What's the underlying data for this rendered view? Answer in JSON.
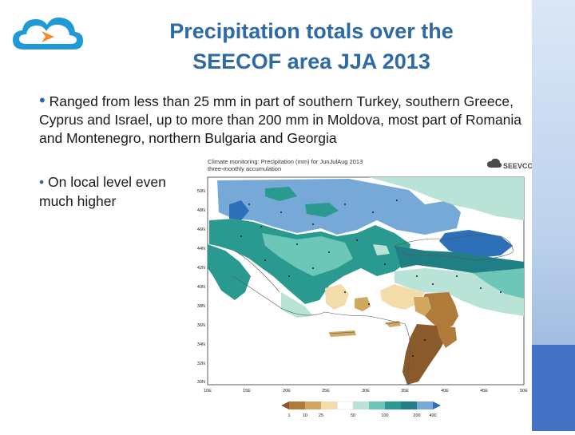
{
  "slide": {
    "title_line1": "Precipitation totals over the",
    "title_line2": "SEECOF area  JJA 2013",
    "bullets": [
      "Ranged from less than 25 mm in part of southern Turkey, southern Greece, Cyprus and Israel, up to more than 200 mm in Moldova, most part of Romania and Montenegro, northern Bulgaria and Georgia",
      "On local level even much higher"
    ],
    "logo_icon": "cloud-arrow-icon",
    "accent_color": "#2e6aa6"
  },
  "map": {
    "title_line1": "Climate monitoring: Precipitation (mm) for JunJulAug 2013",
    "title_line2": "three-monthly accumulation",
    "logo_text": "SEEVCCC",
    "lat_labels": [
      "50N",
      "48N",
      "46N",
      "44N",
      "42N",
      "40N",
      "38N",
      "36N",
      "34N",
      "32N",
      "30N"
    ],
    "lon_labels": [
      "10E",
      "15E",
      "20E",
      "25E",
      "30E",
      "35E",
      "40E",
      "45E",
      "50E"
    ],
    "legend_values": [
      "1",
      "10",
      "25",
      "50",
      "100",
      "200",
      "400"
    ],
    "legend_colors": [
      "#8b5a2b",
      "#b07a3a",
      "#d2a860",
      "#f2dcaa",
      "#b9e3d6",
      "#6cc7b8",
      "#2a9a90",
      "#1f7f84",
      "#76a9d8",
      "#2d6fb8"
    ]
  }
}
